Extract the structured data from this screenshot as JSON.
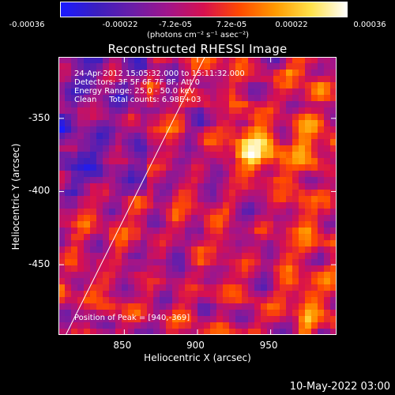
{
  "chart_data": {
    "type": "heatmap",
    "title": "Reconstructed RHESSI Image",
    "colorbar": {
      "colormap": "blue-purple-red-yellow-white",
      "colors": [
        "#1a1aff",
        "#3b1fbf",
        "#6a1ea8",
        "#a1158a",
        "#d7104f",
        "#ff4a00",
        "#ff9a00",
        "#ffe24a",
        "#ffffff"
      ],
      "range": [
        -0.00036,
        0.00036
      ],
      "tick_labels": [
        "-0.00036",
        "-0.00022",
        "-7.2e-05",
        "7.2e-05",
        "0.00022",
        "0.00036"
      ],
      "unit_label": "(photons cm⁻² s⁻¹ asec⁻²)"
    },
    "xlabel": "Heliocentric X (arcsec)",
    "ylabel": "Heliocentric Y (arcsec)",
    "x_ticks": [
      850,
      900,
      950
    ],
    "y_ticks": [
      -350,
      -400,
      -450
    ],
    "xlim": [
      805,
      995
    ],
    "ylim": [
      -498,
      -308
    ],
    "annotations": {
      "time_range": "24-Apr-2012 15:05:32.000 to 15:11:32.000",
      "detectors": "Detectors: 3F 5F 6F 7F 8F, Att 0",
      "energy_range": "Energy Range: 25.0 - 50.0 keV",
      "clean_counts": "Clean     Total counts: 6.98E+03",
      "peak": "Position of Peak = [940,-369]"
    },
    "peak": [
      940,
      -369
    ],
    "limb_line": [
      [
        810,
        -498
      ],
      [
        905,
        -308
      ]
    ],
    "grid": false,
    "legend": "none"
  },
  "footer_timestamp": "10-May-2022 03:00"
}
